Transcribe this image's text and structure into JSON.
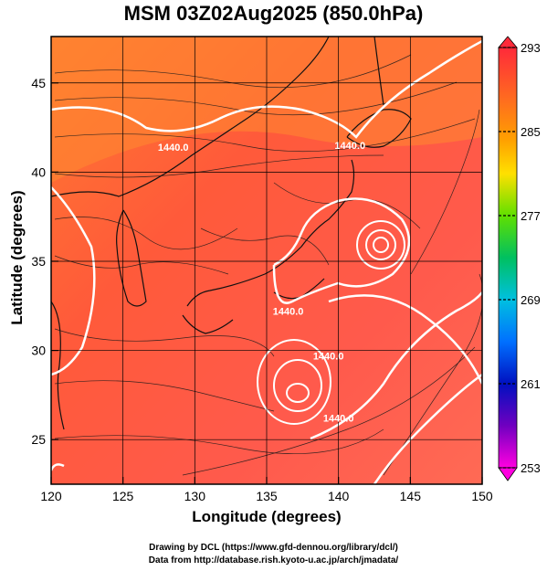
{
  "title": "MSM 03Z02Aug2025 (850.0hPa)",
  "xlabel": "Longitude (degrees)",
  "ylabel": "Latitude (degrees)",
  "credits": [
    "Drawing by DCL (https://www.gfd-dennou.org/library/dcl/)",
    "Data from http://database.rish.kyoto-u.ac.jp/arch/jmadata/"
  ],
  "map": {
    "lon_range": [
      120,
      150
    ],
    "lat_range": [
      22.5,
      47.6
    ],
    "x_ticks": [
      120,
      125,
      130,
      135,
      140,
      145,
      150
    ],
    "y_ticks": [
      25,
      30,
      35,
      40,
      45
    ],
    "grid": true,
    "field": "temperature (shaded) with streamlines and geopotential height contours",
    "contour_labels": [
      {
        "text": "1440.0",
        "lon": 128.5,
        "lat": 41.2
      },
      {
        "text": "1440.0",
        "lon": 140.8,
        "lat": 41.3
      },
      {
        "text": "1440.0",
        "lon": 136.5,
        "lat": 32.0
      },
      {
        "text": "1440.0",
        "lon": 139.3,
        "lat": 29.5
      },
      {
        "text": "1440.0",
        "lon": 140.0,
        "lat": 26.0
      }
    ],
    "vortex_centers": [
      {
        "lon": 143.4,
        "lat": 36.8
      },
      {
        "lon": 137.3,
        "lat": 28.2
      }
    ]
  },
  "colorbar": {
    "min": 253,
    "max": 293,
    "tick_labels": [
      "293",
      "285",
      "277",
      "269",
      "261",
      "253"
    ],
    "colors": [
      "#ff2040",
      "#ff8000",
      "#ffd000",
      "#80ff00",
      "#00c000",
      "#00c0ff",
      "#0060ff",
      "#0000c0",
      "#8000c0",
      "#ff00ff"
    ]
  }
}
